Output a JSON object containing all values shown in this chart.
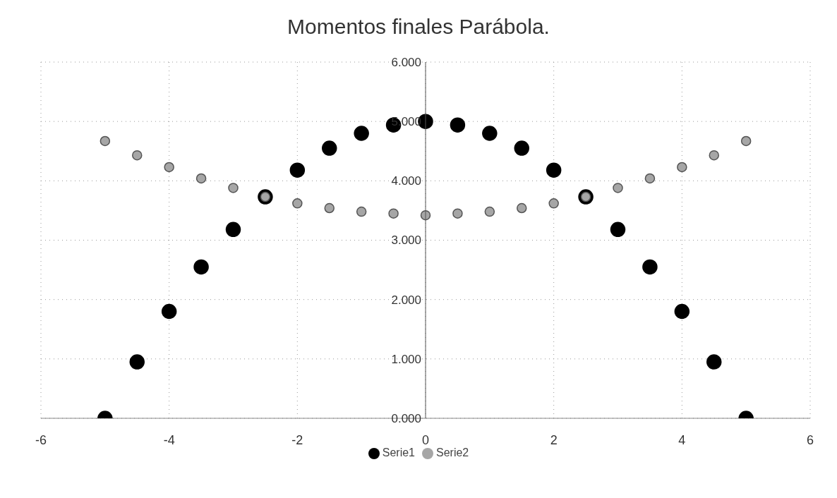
{
  "chart_data": {
    "type": "scatter",
    "title": "Momentos finales Parábola.",
    "x": [
      -5,
      -4.5,
      -4,
      -3.5,
      -3,
      -2.5,
      -2,
      -1.5,
      -1,
      -0.5,
      0,
      0.5,
      1,
      1.5,
      2,
      2.5,
      3,
      3.5,
      4,
      4.5,
      5
    ],
    "series": [
      {
        "name": "Serie1",
        "color": "#000000",
        "values": [
          0,
          0.95,
          1.8,
          2.55,
          3.18,
          3.73,
          4.18,
          4.55,
          4.8,
          4.94,
          5,
          4.94,
          4.8,
          4.55,
          4.18,
          3.73,
          3.18,
          2.55,
          1.8,
          0.95,
          0
        ]
      },
      {
        "name": "Serie2",
        "color": "#a6a6a6",
        "values": [
          4.67,
          4.43,
          4.23,
          4.04,
          3.88,
          3.73,
          3.62,
          3.54,
          3.48,
          3.45,
          3.42,
          3.45,
          3.48,
          3.54,
          3.62,
          3.73,
          3.88,
          4.04,
          4.23,
          4.43,
          4.67
        ]
      }
    ],
    "xlim": [
      -6,
      6
    ],
    "xticks": [
      -6,
      -4,
      -2,
      0,
      2,
      4,
      6
    ],
    "ylim": [
      0,
      6
    ],
    "yticks": [
      {
        "value": 0,
        "label": "0.000"
      },
      {
        "value": 1,
        "label": "1.000"
      },
      {
        "value": 2,
        "label": "2.000"
      },
      {
        "value": 3,
        "label": "3.000"
      },
      {
        "value": 4,
        "label": "4.000"
      },
      {
        "value": 5,
        "label": "5.000"
      },
      {
        "value": 6,
        "label": "6.000"
      }
    ],
    "grid": true,
    "legend": "bottom",
    "marker": "circle"
  }
}
